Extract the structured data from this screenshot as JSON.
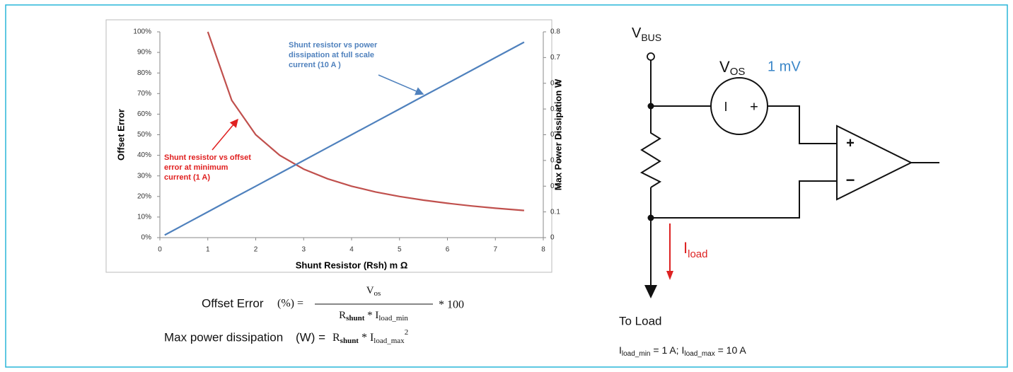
{
  "chart_data": {
    "type": "line",
    "x": [
      0.1,
      0.5,
      1,
      1.5,
      2,
      2.5,
      3,
      3.5,
      4,
      4.5,
      5,
      5.5,
      6,
      6.5,
      7,
      7.6
    ],
    "series": [
      {
        "name": "Offset Error",
        "color": "#c0504d",
        "values": [
          null,
          null,
          100,
          66.7,
          50,
          40,
          33.3,
          28.6,
          25,
          22.2,
          20,
          18.2,
          16.7,
          15.4,
          14.3,
          13.2
        ]
      },
      {
        "name": "Max Power Dissipation W",
        "color": "#4f81bd",
        "axis": "y2",
        "values": [
          0.01,
          0.05,
          0.1,
          0.15,
          0.2,
          0.25,
          0.3,
          0.35,
          0.4,
          0.45,
          0.5,
          0.55,
          0.6,
          0.65,
          0.7,
          0.76
        ]
      }
    ],
    "x_label": "Shunt Resistor (Rsh) m Ω",
    "y_label": "Offset Error",
    "y2_label": "Max Power Dissipation W",
    "xlim": [
      0,
      8
    ],
    "xticks": [
      0,
      1,
      2,
      3,
      4,
      5,
      6,
      7,
      8
    ],
    "ylim": [
      0,
      100
    ],
    "yticks": [
      {
        "value": 0,
        "label": "0%"
      },
      {
        "value": 10,
        "label": "10%"
      },
      {
        "value": 20,
        "label": "20%"
      },
      {
        "value": 30,
        "label": "30%"
      },
      {
        "value": 40,
        "label": "40%"
      },
      {
        "value": 50,
        "label": "50%"
      },
      {
        "value": 60,
        "label": "60%"
      },
      {
        "value": 70,
        "label": "70%"
      },
      {
        "value": 80,
        "label": "80%"
      },
      {
        "value": 90,
        "label": "90%"
      },
      {
        "value": 100,
        "label": "100%"
      }
    ],
    "y2lim": [
      0,
      0.8
    ],
    "y2ticks": [
      0,
      0.1,
      0.2,
      0.3,
      0.4,
      0.5,
      0.6,
      0.7,
      0.8
    ],
    "grid": false,
    "annotations": [
      {
        "lines": [
          "Shunt resistor vs power",
          "dissipation at  full scale",
          "current (10 A )"
        ],
        "color": "#4f81bd"
      },
      {
        "lines": [
          "Shunt resistor vs offset",
          "error at  minimum",
          "current (1 A)"
        ],
        "color": "#e02020"
      }
    ]
  },
  "formulas": {
    "offset": {
      "lhs": "Offset Error",
      "unit": "(%) =",
      "num": "V",
      "num_sub": "os",
      "den_r": "R",
      "den_r_sub": "shunt",
      "den_star": " * I",
      "den_i_sub": "load_min",
      "tail": "* 100"
    },
    "power": {
      "lhs": "Max power dissipation",
      "unit": "(W) =",
      "r": "R",
      "r_sub": "shunt",
      "star": " * I",
      "i_sub": "load_max",
      "sup": "2"
    }
  },
  "diagram": {
    "vbus": "V",
    "vbus_sub": "BUS",
    "vos": "V",
    "vos_sub": "OS",
    "vos_value": "1 mV",
    "src_minus": "I",
    "src_plus": "+",
    "amp_plus": "+",
    "amp_minus": "−",
    "iload": "I",
    "iload_sub": "load",
    "to_load": "To Load",
    "note": [
      "I",
      "load_min",
      " = 1 A; I",
      "load_max",
      " = 10 A"
    ]
  }
}
